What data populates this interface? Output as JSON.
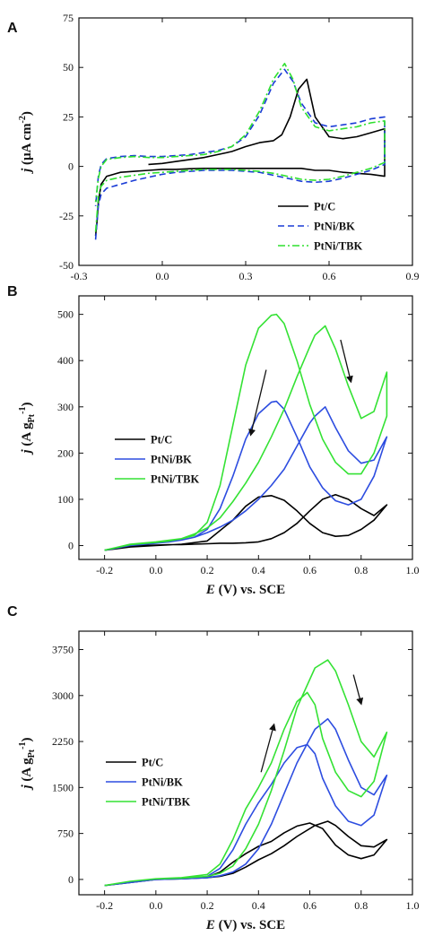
{
  "chart_data": [
    {
      "type": "line",
      "panel_label": "A",
      "xlabel": "",
      "ylabel": "j (µA cm-2)",
      "ylabel_parts": {
        "j": "j",
        "mid": " (µA cm",
        "sup": "-2",
        "end": ")"
      },
      "xlim": [
        -0.3,
        0.9
      ],
      "ylim": [
        -50,
        75
      ],
      "x_ticks": [
        -0.3,
        0.0,
        0.3,
        0.6,
        0.9
      ],
      "x_tick_labels": [
        "-0.3",
        "0.0",
        "0.3",
        "0.6",
        "0.9"
      ],
      "y_ticks": [
        -50,
        -25,
        0,
        25,
        50,
        75
      ],
      "y_tick_labels": [
        "-50",
        "-25",
        "0",
        "25",
        "50",
        "75"
      ],
      "legend_position": "bottom-right",
      "series": [
        {
          "name": "Pt/C",
          "color": "#000000",
          "dash": "solid",
          "x": [
            -0.24,
            -0.235,
            -0.23,
            -0.22,
            -0.2,
            -0.15,
            -0.1,
            -0.05,
            0.0,
            0.05,
            0.1,
            0.15,
            0.2,
            0.25,
            0.3,
            0.35,
            0.4,
            0.45,
            0.5,
            0.55,
            0.6,
            0.65,
            0.7,
            0.75,
            0.8,
            0.8,
            0.75,
            0.7,
            0.65,
            0.6,
            0.55,
            0.52,
            0.49,
            0.46,
            0.43,
            0.4,
            0.35,
            0.3,
            0.25,
            0.2,
            0.15,
            0.1,
            0.05,
            0.0,
            -0.05
          ],
          "y": [
            -35,
            -28,
            -18,
            -9,
            -5,
            -3,
            -2.5,
            -2,
            -1.5,
            -1.5,
            -1.2,
            -1,
            -1,
            -1,
            -1,
            -1,
            -1,
            -1,
            -1,
            -2,
            -2,
            -3,
            -3.5,
            -4,
            -5,
            19,
            17,
            15,
            14,
            15,
            25,
            44,
            39,
            25,
            16,
            13,
            12,
            10,
            7.5,
            6,
            4.5,
            3.5,
            2.5,
            1.5,
            1
          ]
        },
        {
          "name": "PtNi/BK",
          "color": "#1a3cd6",
          "dash": "dashed",
          "x": [
            -0.24,
            -0.235,
            -0.23,
            -0.22,
            -0.2,
            -0.15,
            -0.1,
            -0.05,
            0.0,
            0.05,
            0.1,
            0.15,
            0.2,
            0.25,
            0.3,
            0.35,
            0.4,
            0.45,
            0.5,
            0.55,
            0.6,
            0.65,
            0.7,
            0.75,
            0.8,
            0.8,
            0.75,
            0.7,
            0.65,
            0.6,
            0.55,
            0.5,
            0.47,
            0.44,
            0.4,
            0.35,
            0.3,
            0.25,
            0.2,
            0.15,
            0.1,
            0.05,
            0.0,
            -0.05,
            -0.1,
            -0.15,
            -0.2,
            -0.22,
            -0.23,
            -0.24
          ],
          "y": [
            -37,
            -28,
            -20,
            -14,
            -11,
            -9,
            -7,
            -5.5,
            -4,
            -3,
            -2.5,
            -2,
            -2,
            -2,
            -2.5,
            -3,
            -4.5,
            -6,
            -7.5,
            -8,
            -7.5,
            -6,
            -4,
            -2,
            1,
            25,
            24,
            22,
            21,
            20,
            22,
            32,
            43,
            49,
            42,
            26,
            15,
            10,
            8,
            7,
            6,
            5.5,
            5,
            5,
            5.5,
            5,
            4,
            1,
            -5,
            -20
          ]
        },
        {
          "name": "PtNi/TBK",
          "color": "#2ee02e",
          "dash": "dashdot",
          "x": [
            -0.24,
            -0.235,
            -0.23,
            -0.22,
            -0.2,
            -0.15,
            -0.1,
            -0.05,
            0.0,
            0.05,
            0.1,
            0.15,
            0.2,
            0.25,
            0.3,
            0.35,
            0.4,
            0.45,
            0.5,
            0.55,
            0.6,
            0.65,
            0.7,
            0.75,
            0.8,
            0.8,
            0.75,
            0.7,
            0.65,
            0.6,
            0.55,
            0.5,
            0.47,
            0.44,
            0.4,
            0.35,
            0.3,
            0.25,
            0.2,
            0.15,
            0.1,
            0.05,
            0.0,
            -0.05,
            -0.1,
            -0.15,
            -0.2,
            -0.22,
            -0.23,
            -0.24
          ],
          "y": [
            -33,
            -24,
            -15,
            -10,
            -7,
            -5.5,
            -4.5,
            -3.5,
            -3,
            -2.5,
            -2,
            -1.5,
            -1.5,
            -1.5,
            -2,
            -2.5,
            -3.5,
            -5,
            -6.5,
            -7,
            -6.5,
            -5,
            -3,
            -1,
            2,
            23,
            22,
            20,
            19,
            18,
            20,
            30,
            44,
            52,
            44,
            28,
            16,
            10,
            7.5,
            6,
            5.5,
            5,
            4.5,
            4.5,
            5,
            4.5,
            3.5,
            0,
            -6,
            -18
          ]
        }
      ]
    },
    {
      "type": "line",
      "panel_label": "B",
      "xlabel": "E (V) vs. SCE",
      "xlabel_parts": {
        "e": "E",
        "rest": " (V) vs. SCE"
      },
      "ylabel": "j (A gPt-1)",
      "ylabel_parts": {
        "j": "j",
        "mid": " (A g",
        "sub": "Pt",
        "sup": "-1",
        "end": ")"
      },
      "xlim": [
        -0.3,
        1.0
      ],
      "ylim": [
        -30,
        540
      ],
      "x_ticks": [
        -0.2,
        0.0,
        0.2,
        0.4,
        0.6,
        0.8,
        1.0
      ],
      "x_tick_labels": [
        "-0.2",
        "0.0",
        "0.2",
        "0.4",
        "0.6",
        "0.8",
        "1.0"
      ],
      "y_ticks": [
        0,
        100,
        200,
        300,
        400,
        500
      ],
      "y_tick_labels": [
        "0",
        "100",
        "200",
        "300",
        "400",
        "500"
      ],
      "legend_position": "middle-left",
      "arrows": [
        {
          "from": [
            0.43,
            380
          ],
          "to": [
            0.37,
            240
          ]
        },
        {
          "from": [
            0.72,
            445
          ],
          "to": [
            0.76,
            355
          ]
        }
      ],
      "series": [
        {
          "name": "Pt/C",
          "color": "#000000",
          "dash": "solid",
          "x": [
            -0.2,
            -0.1,
            0.0,
            0.1,
            0.2,
            0.3,
            0.35,
            0.4,
            0.45,
            0.5,
            0.55,
            0.6,
            0.65,
            0.7,
            0.75,
            0.8,
            0.85,
            0.9,
            0.9,
            0.85,
            0.8,
            0.75,
            0.7,
            0.65,
            0.6,
            0.55,
            0.5,
            0.45,
            0.4,
            0.35,
            0.3,
            0.25,
            0.2,
            0.15,
            0.1,
            0.05,
            0.0,
            -0.1,
            -0.2
          ],
          "y": [
            -10,
            -3,
            0,
            3,
            10,
            55,
            85,
            105,
            108,
            98,
            75,
            48,
            28,
            20,
            22,
            35,
            55,
            88,
            88,
            65,
            80,
            100,
            110,
            100,
            75,
            48,
            28,
            15,
            8,
            6,
            5,
            5,
            4,
            3,
            2,
            2,
            1,
            0,
            -10
          ]
        },
        {
          "name": "PtNi/BK",
          "color": "#2d4de0",
          "dash": "solid",
          "x": [
            -0.2,
            -0.1,
            0.0,
            0.1,
            0.15,
            0.2,
            0.25,
            0.3,
            0.35,
            0.4,
            0.45,
            0.47,
            0.5,
            0.55,
            0.6,
            0.65,
            0.7,
            0.75,
            0.8,
            0.85,
            0.9,
            0.9,
            0.85,
            0.8,
            0.75,
            0.7,
            0.66,
            0.62,
            0.6,
            0.55,
            0.5,
            0.45,
            0.4,
            0.35,
            0.3,
            0.25,
            0.2,
            0.15,
            0.1,
            0.05,
            0.0,
            -0.1,
            -0.2
          ],
          "y": [
            -10,
            0,
            5,
            12,
            18,
            35,
            80,
            150,
            230,
            285,
            310,
            312,
            295,
            235,
            170,
            125,
            97,
            88,
            100,
            150,
            235,
            235,
            185,
            178,
            205,
            255,
            300,
            280,
            265,
            215,
            165,
            130,
            100,
            75,
            55,
            40,
            28,
            18,
            12,
            8,
            5,
            0,
            -10
          ]
        },
        {
          "name": "PtNi/TBK",
          "color": "#34e234",
          "dash": "solid",
          "x": [
            -0.2,
            -0.1,
            0.0,
            0.1,
            0.15,
            0.2,
            0.25,
            0.3,
            0.35,
            0.4,
            0.45,
            0.47,
            0.5,
            0.55,
            0.6,
            0.65,
            0.7,
            0.75,
            0.8,
            0.85,
            0.9,
            0.9,
            0.85,
            0.8,
            0.75,
            0.7,
            0.66,
            0.62,
            0.6,
            0.55,
            0.5,
            0.45,
            0.4,
            0.35,
            0.3,
            0.25,
            0.2,
            0.15,
            0.1,
            0.05,
            0.0,
            -0.1,
            -0.2
          ],
          "y": [
            -10,
            3,
            8,
            15,
            22,
            50,
            130,
            260,
            390,
            470,
            498,
            500,
            480,
            400,
            305,
            230,
            180,
            155,
            155,
            200,
            280,
            375,
            290,
            275,
            345,
            425,
            475,
            455,
            430,
            365,
            295,
            235,
            180,
            135,
            95,
            60,
            38,
            25,
            15,
            10,
            7,
            2,
            -10
          ]
        }
      ]
    },
    {
      "type": "line",
      "panel_label": "C",
      "xlabel": "E (V) vs. SCE",
      "xlabel_parts": {
        "e": "E",
        "rest": " (V) vs. SCE"
      },
      "ylabel": "j (A gPt-1)",
      "ylabel_parts": {
        "j": "j",
        "mid": " (A g",
        "sub": "Pt",
        "sup": "-1",
        "end": ")"
      },
      "xlim": [
        -0.3,
        1.0
      ],
      "ylim": [
        -250,
        4050
      ],
      "x_ticks": [
        -0.2,
        0.0,
        0.2,
        0.4,
        0.6,
        0.8,
        1.0
      ],
      "x_tick_labels": [
        "-0.2",
        "0.0",
        "0.2",
        "0.4",
        "0.6",
        "0.8",
        "1.0"
      ],
      "y_ticks": [
        0,
        750,
        1500,
        2250,
        3000,
        3750
      ],
      "y_tick_labels": [
        "0",
        "750",
        "1500",
        "2250",
        "3000",
        "3750"
      ],
      "legend_position": "middle-left",
      "arrows": [
        {
          "from": [
            0.41,
            1750
          ],
          "to": [
            0.46,
            2520
          ]
        },
        {
          "from": [
            0.77,
            3340
          ],
          "to": [
            0.8,
            2870
          ]
        }
      ],
      "series": [
        {
          "name": "Pt/C",
          "color": "#000000",
          "dash": "solid",
          "x": [
            -0.2,
            -0.1,
            0.0,
            0.1,
            0.2,
            0.25,
            0.3,
            0.35,
            0.4,
            0.45,
            0.5,
            0.55,
            0.6,
            0.65,
            0.7,
            0.75,
            0.8,
            0.85,
            0.9,
            0.9,
            0.85,
            0.8,
            0.75,
            0.7,
            0.67,
            0.62,
            0.55,
            0.5,
            0.45,
            0.4,
            0.35,
            0.3,
            0.25,
            0.2,
            0.1,
            0.0,
            -0.1,
            -0.2
          ],
          "y": [
            -100,
            -50,
            0,
            10,
            40,
            120,
            280,
            420,
            540,
            620,
            760,
            870,
            920,
            830,
            560,
            400,
            340,
            400,
            650,
            650,
            530,
            550,
            700,
            880,
            950,
            880,
            700,
            550,
            420,
            320,
            200,
            100,
            50,
            30,
            10,
            0,
            -50,
            -100
          ]
        },
        {
          "name": "PtNi/BK",
          "color": "#2d4de0",
          "dash": "solid",
          "x": [
            -0.2,
            -0.1,
            0.0,
            0.1,
            0.2,
            0.25,
            0.3,
            0.35,
            0.4,
            0.45,
            0.5,
            0.55,
            0.59,
            0.62,
            0.65,
            0.7,
            0.75,
            0.8,
            0.85,
            0.9,
            0.9,
            0.85,
            0.8,
            0.75,
            0.7,
            0.67,
            0.62,
            0.55,
            0.5,
            0.45,
            0.4,
            0.35,
            0.3,
            0.25,
            0.2,
            0.1,
            0.0,
            -0.1,
            -0.2
          ],
          "y": [
            -100,
            -50,
            0,
            10,
            50,
            180,
            480,
            900,
            1250,
            1550,
            1900,
            2150,
            2200,
            2050,
            1650,
            1200,
            950,
            880,
            1050,
            1700,
            1700,
            1380,
            1500,
            1950,
            2450,
            2620,
            2450,
            1900,
            1400,
            900,
            500,
            250,
            120,
            60,
            30,
            10,
            0,
            -50,
            -100
          ]
        },
        {
          "name": "PtNi/TBK",
          "color": "#34e234",
          "dash": "solid",
          "x": [
            -0.2,
            -0.1,
            0.0,
            0.1,
            0.2,
            0.25,
            0.3,
            0.35,
            0.4,
            0.45,
            0.5,
            0.55,
            0.59,
            0.62,
            0.65,
            0.7,
            0.75,
            0.8,
            0.85,
            0.9,
            0.9,
            0.85,
            0.8,
            0.75,
            0.7,
            0.67,
            0.62,
            0.55,
            0.5,
            0.45,
            0.4,
            0.35,
            0.3,
            0.25,
            0.2,
            0.1,
            0.0,
            -0.1,
            -0.2
          ],
          "y": [
            -100,
            -30,
            10,
            30,
            80,
            250,
            650,
            1150,
            1500,
            1900,
            2450,
            2900,
            3050,
            2850,
            2300,
            1750,
            1450,
            1350,
            1600,
            2400,
            2400,
            2000,
            2250,
            2850,
            3400,
            3580,
            3450,
            2800,
            2100,
            1450,
            900,
            500,
            220,
            100,
            50,
            20,
            10,
            -30,
            -100
          ]
        }
      ]
    }
  ]
}
